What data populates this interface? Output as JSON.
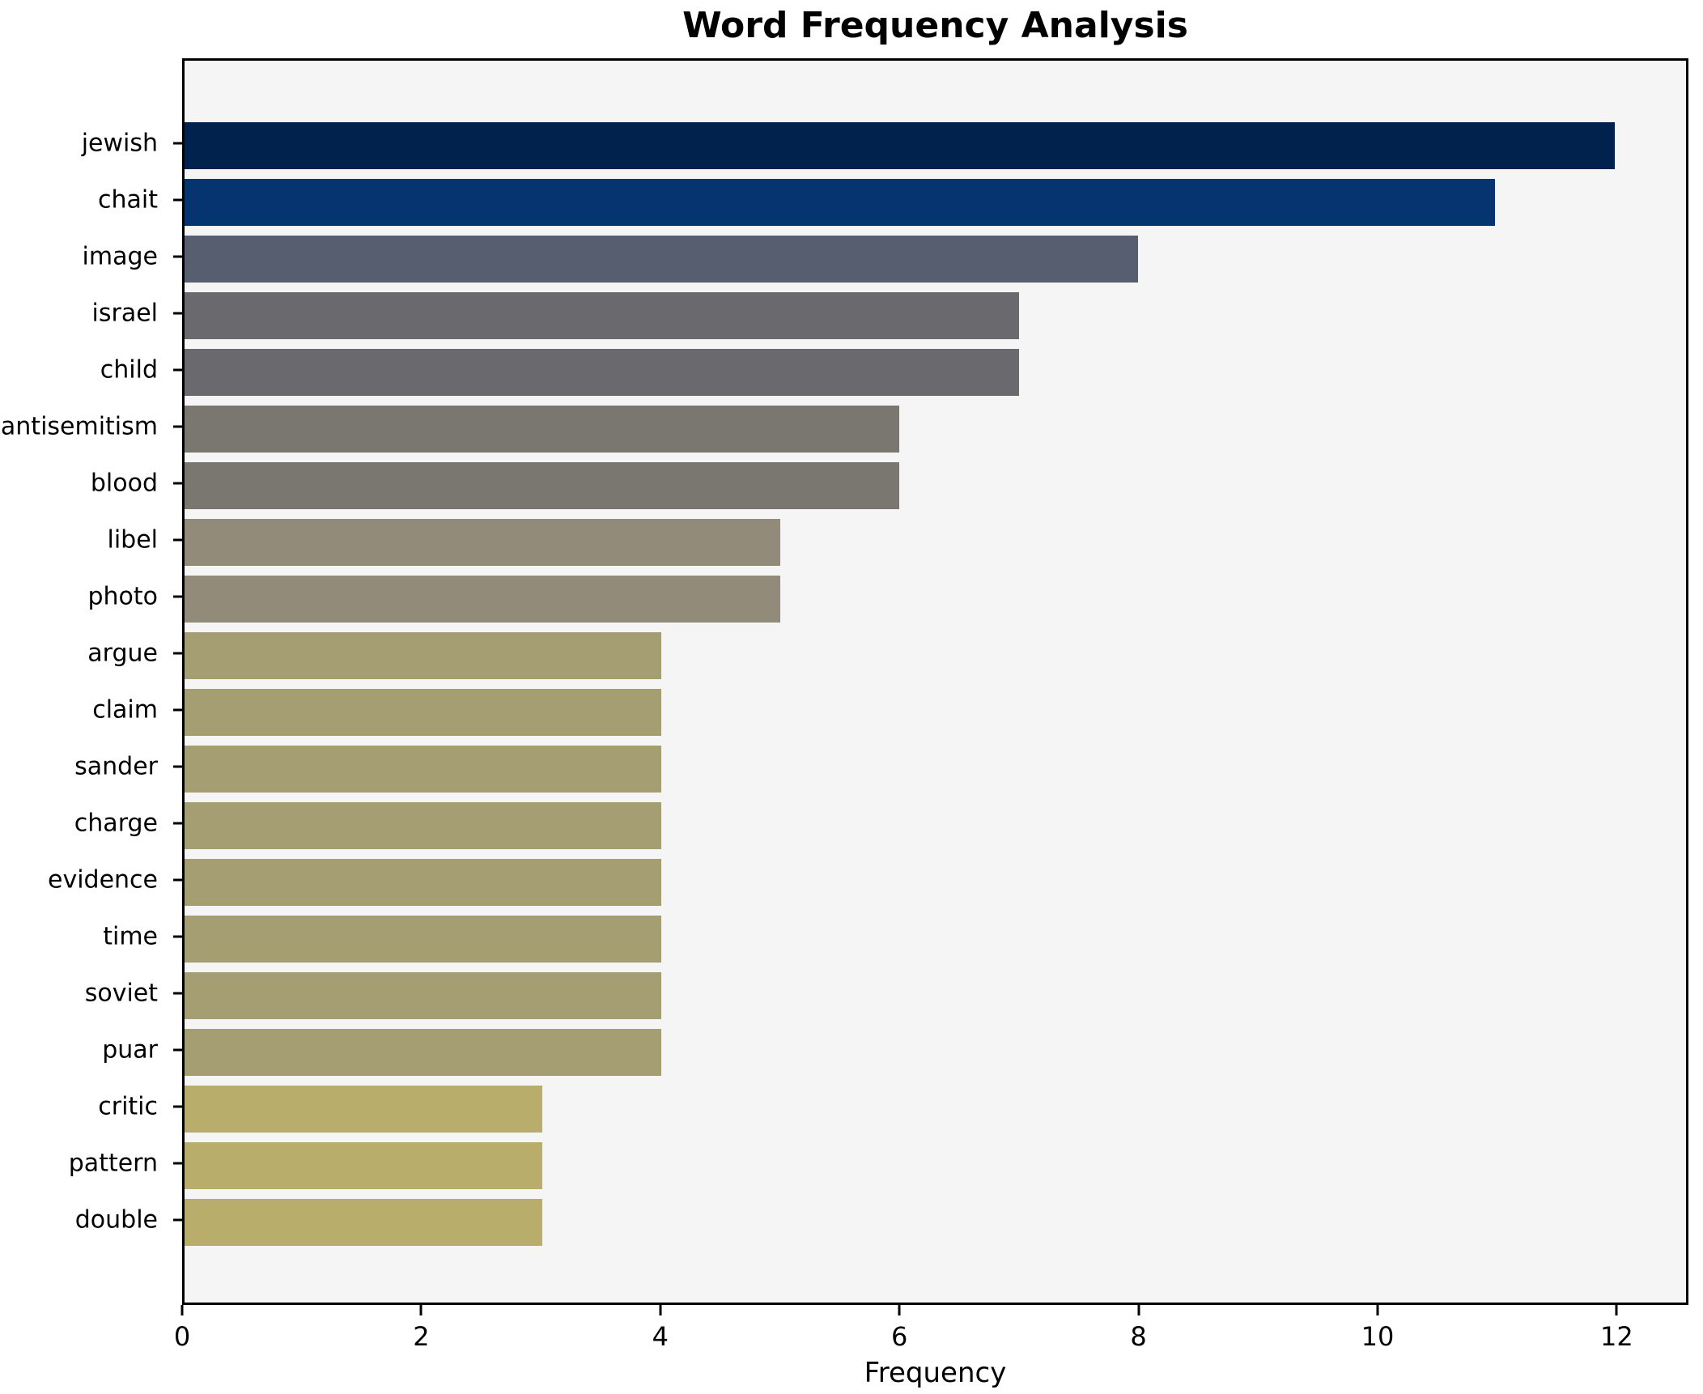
{
  "chart_data": {
    "type": "bar",
    "orientation": "horizontal",
    "title": "Word Frequency Analysis",
    "xlabel": "Frequency",
    "ylabel": "",
    "categories": [
      "jewish",
      "chait",
      "image",
      "israel",
      "child",
      "antisemitism",
      "blood",
      "libel",
      "photo",
      "argue",
      "claim",
      "sander",
      "charge",
      "evidence",
      "time",
      "soviet",
      "puar",
      "critic",
      "pattern",
      "double"
    ],
    "values": [
      12,
      11,
      8,
      7,
      7,
      6,
      6,
      5,
      5,
      4,
      4,
      4,
      4,
      4,
      4,
      4,
      4,
      3,
      3,
      3
    ],
    "bar_colors": [
      "#00224d",
      "#053470",
      "#565e70",
      "#6a6a6e",
      "#6a6a6e",
      "#7a7770",
      "#7a7770",
      "#928b79",
      "#928b79",
      "#a59e72",
      "#a59e72",
      "#a59e72",
      "#a59e72",
      "#a59e72",
      "#a59e72",
      "#a59e72",
      "#a59e72",
      "#b9ad6c",
      "#b9ad6c",
      "#b9ad6c"
    ],
    "xlim": [
      0,
      12.6
    ],
    "x_ticks": [
      0,
      2,
      4,
      6,
      8,
      10,
      12
    ],
    "grid": false,
    "legend_position": "none",
    "plot_background": "#f5f5f5",
    "figure_background": "#ffffff",
    "spine_color": "#000000"
  }
}
